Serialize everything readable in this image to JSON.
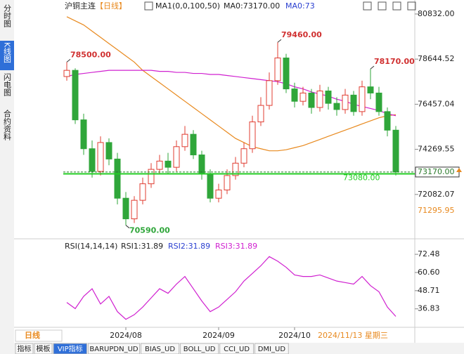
{
  "ui": {
    "sidebar": [
      "分时图",
      "K线图",
      "闪电图",
      "合约资料"
    ],
    "header": {
      "symbol": "沪铜主连",
      "period": "【日线】",
      "indicator": "MA1(0,0,100,50)",
      "ma0": "MA0:73170.00",
      "ma0_short": "MA0:73"
    },
    "period_label": "日线",
    "date_label": "2024/11/13 星期三",
    "tabs": [
      "指标",
      "模板",
      "VIP指标",
      "BARUPDN_UD",
      "BIAS_UD",
      "BOLL_UD",
      "CCI_UD",
      "DMI_UD"
    ]
  },
  "chart_data": [
    {
      "type": "candlestick",
      "categories": [
        null,
        null,
        null,
        null,
        null,
        null,
        null,
        "2024/08",
        null,
        null,
        null,
        null,
        null,
        null,
        null,
        null,
        null,
        null,
        "2024/09",
        null,
        null,
        null,
        null,
        null,
        null,
        null,
        null,
        "2024/10",
        null,
        null,
        null,
        null,
        null,
        null,
        null,
        null,
        null,
        null,
        null,
        null
      ],
      "open": [
        77800,
        78100,
        75700,
        74300,
        73200,
        74600,
        73800,
        71900,
        70900,
        71800,
        72600,
        73300,
        73700,
        73400,
        74400,
        75000,
        74000,
        73100,
        71900,
        72300,
        73000,
        73600,
        74300,
        75600,
        76400,
        77600,
        78700,
        77200,
        76600,
        77000,
        76300,
        77100,
        76500,
        76200,
        76900,
        76100,
        77300,
        77000,
        76100,
        75200
      ],
      "high": [
        78500,
        78200,
        76000,
        74700,
        74900,
        74800,
        74100,
        72200,
        72000,
        72900,
        73600,
        74000,
        74100,
        74700,
        75400,
        75200,
        74200,
        73300,
        72600,
        73300,
        73900,
        74600,
        75900,
        76800,
        78000,
        79460,
        78900,
        77500,
        77300,
        77200,
        77400,
        77300,
        76800,
        77200,
        77100,
        77600,
        78170,
        77300,
        76300,
        75400
      ],
      "low": [
        77600,
        75500,
        74000,
        72900,
        73000,
        73500,
        71600,
        70590,
        70700,
        71600,
        72400,
        73100,
        73100,
        73200,
        74200,
        73800,
        72800,
        71700,
        71700,
        72100,
        72800,
        73400,
        74100,
        75400,
        76200,
        77400,
        77000,
        76300,
        76400,
        76000,
        76100,
        76200,
        75900,
        76000,
        75900,
        75900,
        76700,
        75900,
        74900,
        73000
      ],
      "close": [
        78100,
        75700,
        74300,
        73200,
        74600,
        73800,
        71900,
        70900,
        71800,
        72600,
        73300,
        73700,
        73400,
        74400,
        75000,
        74000,
        73100,
        71900,
        72300,
        73000,
        73600,
        74300,
        75600,
        76400,
        77600,
        78700,
        77200,
        76600,
        77000,
        76300,
        77100,
        76500,
        76200,
        76900,
        76100,
        77300,
        77000,
        76100,
        75200,
        73170
      ],
      "up_color": "#e03c31",
      "down_color": "#2fa63a",
      "series": [
        {
          "color": "#e8891e",
          "values": [
            80700,
            80500,
            80300,
            80000,
            79700,
            79400,
            79100,
            78800,
            78500,
            78100,
            77800,
            77500,
            77200,
            76900,
            76600,
            76300,
            76000,
            75700,
            75400,
            75100,
            74800,
            74600,
            74400,
            74300,
            74200,
            74200,
            74250,
            74350,
            74450,
            74600,
            74750,
            74900,
            75050,
            75200,
            75350,
            75500,
            75650,
            75800,
            75900,
            75950
          ]
        },
        {
          "color": "#d020d0",
          "values": [
            77800,
            77900,
            77950,
            78000,
            78050,
            78100,
            78100,
            78100,
            78100,
            78100,
            78100,
            78050,
            78050,
            78000,
            78000,
            77950,
            77950,
            77900,
            77900,
            77850,
            77800,
            77750,
            77700,
            77650,
            77600,
            77550,
            77450,
            77300,
            77200,
            77050,
            76950,
            76850,
            76700,
            76600,
            76450,
            76350,
            76250,
            76150,
            76000,
            75900
          ]
        }
      ],
      "annotations": [
        {
          "label": "78500.00",
          "value": 78500,
          "color": "#d03030"
        },
        {
          "label": "79460.00",
          "value": 79460,
          "color": "#d03030"
        },
        {
          "label": "70590.00",
          "value": 70590,
          "color": "#2fa63a"
        },
        {
          "label": "78170.00",
          "value": 78170,
          "color": "#d03030"
        }
      ],
      "price_lines": [
        {
          "label": "73170.00",
          "value": 73170,
          "color": "#2b7a2b",
          "style": "dashed",
          "boxed": true
        },
        {
          "label": "73080.00",
          "value": 73080,
          "color": "#22cc22",
          "style": "solid",
          "boxed": false
        },
        {
          "label": "71295.95",
          "value": 71295.95,
          "color": "#e8891e",
          "style": "none",
          "boxed": false
        }
      ],
      "ylim": [
        70000,
        81170
      ],
      "yticks": [
        {
          "value": 80832,
          "label": "80832.00"
        },
        {
          "value": 78644.52,
          "label": "78644.52"
        },
        {
          "value": 76457.04,
          "label": "76457.04"
        },
        {
          "value": 74269.55,
          "label": "74269.55"
        },
        {
          "value": 72082.07,
          "label": "72082.07"
        }
      ]
    },
    {
      "type": "line",
      "title": "RSI(14,14,14)",
      "legend": [
        {
          "label": "RSI1:31.89",
          "color": "#222"
        },
        {
          "label": "RSI2:31.89",
          "color": "#2a3fd0"
        },
        {
          "label": "RSI3:31.89",
          "color": "#d020d0"
        }
      ],
      "series": [
        {
          "color": "#d020d0",
          "values": [
            41,
            37,
            45,
            50,
            40,
            45,
            35,
            30,
            33,
            38,
            44,
            50,
            47,
            53,
            58,
            50,
            42,
            35,
            38,
            43,
            48,
            55,
            60,
            65,
            71,
            68,
            64,
            59,
            58,
            58,
            59,
            57,
            55,
            54,
            53,
            58,
            52,
            48,
            38,
            31.89
          ]
        }
      ],
      "ylim": [
        26.6,
        81.7
      ],
      "yticks": [
        72.48,
        {
          "value": 60.6,
          "label": "60.60"
        },
        48.71,
        36.83
      ]
    }
  ]
}
